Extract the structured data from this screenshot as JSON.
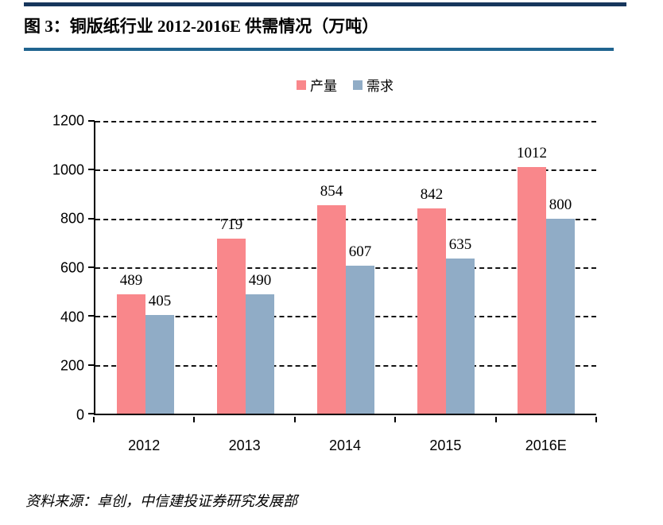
{
  "figure": {
    "title": "图 3：铜版纸行业 2012-2016E 供需情况（万吨）",
    "source": "资料来源：卓创，中信建投证券研究发展部"
  },
  "chart_data": {
    "type": "bar",
    "title": "铜版纸行业 2012-2016E 供需情况（万吨）",
    "unit": "万吨",
    "categories": [
      "2012",
      "2013",
      "2014",
      "2015",
      "2016E"
    ],
    "series": [
      {
        "name": "产量",
        "color": "#f9878b",
        "values": [
          489,
          719,
          854,
          842,
          1012
        ]
      },
      {
        "name": "需求",
        "color": "#90acc6",
        "values": [
          405,
          490,
          607,
          635,
          800
        ]
      }
    ],
    "ylim": [
      0,
      1200
    ],
    "yticks": [
      0,
      200,
      400,
      600,
      800,
      1000,
      1200
    ],
    "grid": "horizontal-dashed",
    "legend_position": "top-center",
    "data_labels": true,
    "xlabel": "",
    "ylabel": ""
  },
  "colors": {
    "top_rule": "#16365c",
    "title_rule": "#20648f",
    "gridline": "#141414",
    "axis": "#000000"
  }
}
